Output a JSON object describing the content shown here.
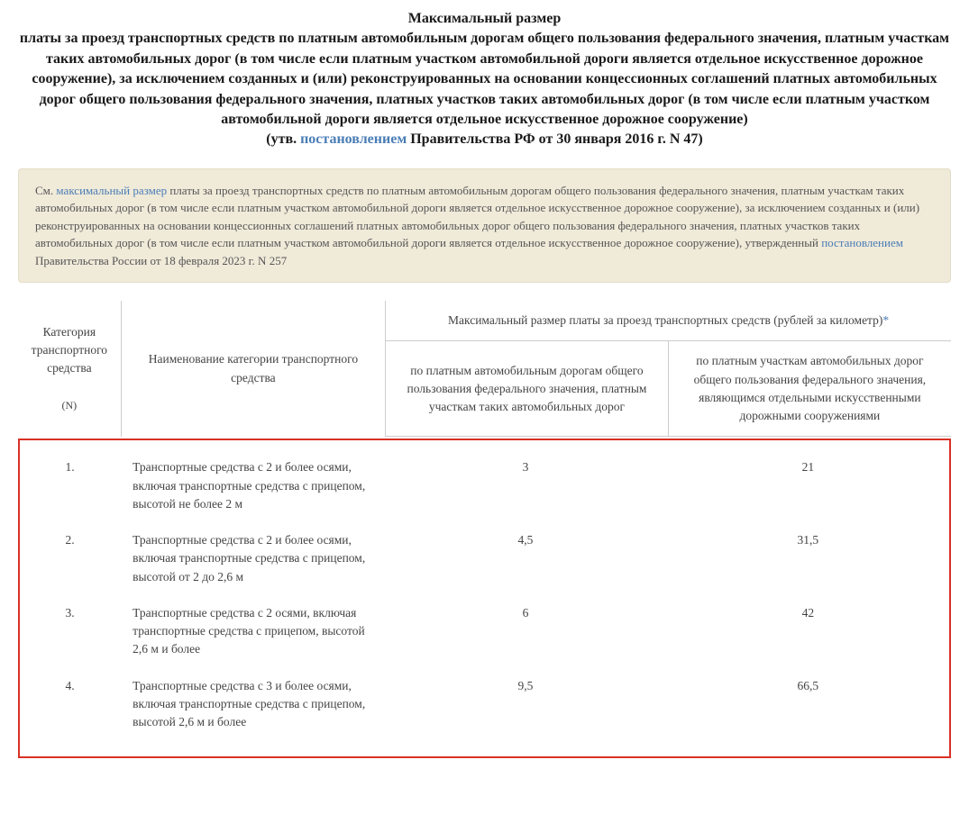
{
  "title": {
    "line1": "Максимальный размер",
    "line2": "платы за проезд транспортных средств по платным автомобильным дорогам общего пользования федерального значения, платным участкам таких автомобильных дорог (в том числе если платным участком автомобильной дороги является отдельное искусственное дорожное сооружение), за исключением созданных и (или) реконструированных на основании концессионных соглашений платных автомобильных дорог общего пользования федерального значения, платных участков таких автомобильных дорог (в том числе если платным участком автомобильной дороги является отдельное искусственное дорожное сооружение)",
    "approved_prefix": "(утв. ",
    "approved_link": "постановлением",
    "approved_suffix": " Правительства РФ от 30 января 2016 г. N 47)"
  },
  "note": {
    "prefix": "См. ",
    "link1": "максимальный размер",
    "mid": " платы за проезд транспортных средств по платным автомобильным дорогам общего пользования федерального значения, платным участкам таких автомобильных дорог (в том числе если платным участком автомобильной дороги является отдельное искусственное дорожное сооружение), за исключением созданных и (или) реконструированных на основании концессионных соглашений платных автомобильных дорог общего пользования федерального значения, платных участков таких автомобильных дорог (в том числе если платным участком автомобильной дороги является отдельное искусственное дорожное сооружение), утвержденный ",
    "link2": "постановлением",
    "suffix": " Правительства России от 18 февраля 2023 г. N 257"
  },
  "table": {
    "headers": {
      "col1_line1": "Категория транспортного средства",
      "col1_n": "(N)",
      "col2": "Наименование категории транспортного средства",
      "col34_top": "Максимальный размер платы за проезд транспортных средств (рублей за километр)",
      "col34_star": "*",
      "col3": "по платным автомобильным дорогам общего пользования федерального значения, платным участкам таких автомобильных дорог",
      "col4": "по платным участкам автомобильных дорог общего пользования федерального значения, являющимся отдельными искусственными дорожными сооружениями"
    },
    "rows": [
      {
        "n": "1.",
        "name": "Транспортные средства с 2 и более осями, включая транспортные средства с прицепом, высотой не более 2 м",
        "v1": "3",
        "v2": "21"
      },
      {
        "n": "2.",
        "name": "Транспортные средства с 2 и более осями, включая транспортные средства с прицепом, высотой от 2 до 2,6 м",
        "v1": "4,5",
        "v2": "31,5"
      },
      {
        "n": "3.",
        "name": "Транспортные средства с 2 осями, включая транспортные средства с прицепом, высотой 2,6 м и более",
        "v1": "6",
        "v2": "42"
      },
      {
        "n": "4.",
        "name": "Транспортные средства с 3 и более осями, включая транспортные средства с прицепом, высотой 2,6 м и более",
        "v1": "9,5",
        "v2": "66,5"
      }
    ]
  },
  "colors": {
    "link": "#4a7db5",
    "note_bg": "#f0ead9",
    "note_border": "#e3dcc7",
    "border": "#cccccc",
    "highlight_border": "#d93025",
    "text": "#333333",
    "text_muted": "#555555"
  }
}
